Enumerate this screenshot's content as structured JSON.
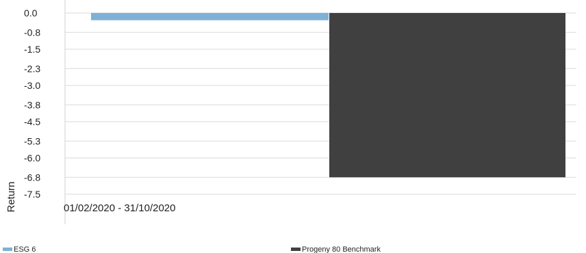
{
  "chart_data": {
    "type": "bar",
    "title": "",
    "xlabel": "",
    "ylabel": "Return",
    "categories": [
      "01/02/2020 - 31/10/2020"
    ],
    "series": [
      {
        "name": "ESG 6",
        "values": [
          -0.3
        ],
        "color": "#7fb1d6"
      },
      {
        "name": "Progeny 80 Benchmark",
        "values": [
          -6.8
        ],
        "color": "#404040"
      }
    ],
    "y_ticks": [
      "0.0",
      "-0.8",
      "-1.5",
      "-2.3",
      "-3.0",
      "-3.8",
      "-4.5",
      "-5.3",
      "-6.0",
      "-6.8",
      "-7.5"
    ],
    "ylim": [
      -7.5,
      0
    ],
    "grid": true,
    "legend_position": "bottom"
  }
}
